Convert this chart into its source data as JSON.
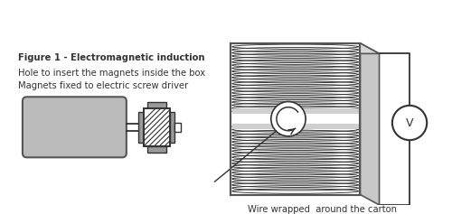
{
  "bg_color": "#ffffff",
  "label1": "Magnets fixed to electric screw driver",
  "label2": "Hole to insert the magnets inside the box",
  "label3": "Figure 1 - Electromagnetic induction",
  "label4": "Wire wrapped  around the carton",
  "label_v": "V",
  "fig_width": 5.0,
  "fig_height": 2.37,
  "line_color": "#333333",
  "grey_light": "#cccccc",
  "grey_med": "#aaaaaa",
  "grey_dark": "#888888"
}
